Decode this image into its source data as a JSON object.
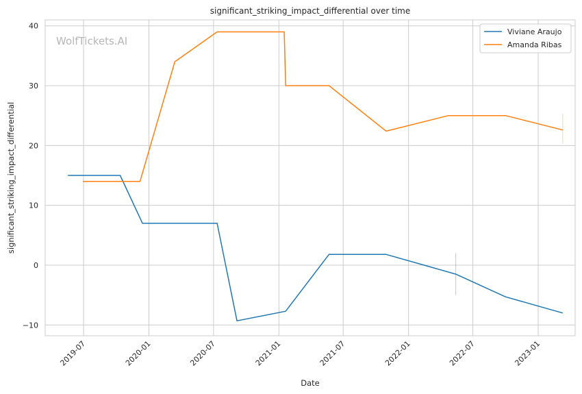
{
  "watermark": "WolfTickets.AI",
  "chart_data": {
    "type": "line",
    "title": "significant_striking_impact_differential over time",
    "xlabel": "Date",
    "ylabel": "significant_striking_impact_differential",
    "x_ticks": [
      "2019-07",
      "2020-01",
      "2020-07",
      "2021-01",
      "2021-07",
      "2022-01",
      "2022-07",
      "2023-01"
    ],
    "y_ticks": [
      -10,
      0,
      10,
      20,
      30,
      40
    ],
    "xlim": [
      "2019-03-15",
      "2023-04-15"
    ],
    "ylim": [
      -11.8,
      41
    ],
    "grid": true,
    "legend_position": "top-right",
    "series": [
      {
        "name": "Viviane Araujo",
        "color": "#1f77b4",
        "points": [
          {
            "x": "2019-05-18",
            "y": 15.0
          },
          {
            "x": "2019-10-12",
            "y": 15.0
          },
          {
            "x": "2019-12-14",
            "y": 7.0
          },
          {
            "x": "2020-07-11",
            "y": 7.0
          },
          {
            "x": "2020-09-05",
            "y": -9.3
          },
          {
            "x": "2021-01-20",
            "y": -7.7
          },
          {
            "x": "2021-05-22",
            "y": 1.8
          },
          {
            "x": "2021-10-30",
            "y": 1.8
          },
          {
            "x": "2022-05-14",
            "y": -1.5
          },
          {
            "x": "2022-10-01",
            "y": -5.3
          },
          {
            "x": "2023-03-11",
            "y": -8.0
          }
        ],
        "error_bar": {
          "x": "2022-05-14",
          "low": -5.0,
          "high": 2.0
        }
      },
      {
        "name": "Amanda Ribas",
        "color": "#ff7f0e",
        "points": [
          {
            "x": "2019-06-29",
            "y": 14.0
          },
          {
            "x": "2019-12-07",
            "y": 14.0
          },
          {
            "x": "2020-03-14",
            "y": 34.0
          },
          {
            "x": "2020-07-11",
            "y": 39.0
          },
          {
            "x": "2021-01-16",
            "y": 39.0
          },
          {
            "x": "2021-01-20",
            "y": 30.0
          },
          {
            "x": "2021-05-22",
            "y": 30.0
          },
          {
            "x": "2021-10-30",
            "y": 22.4
          },
          {
            "x": "2022-04-23",
            "y": 25.0
          },
          {
            "x": "2022-10-01",
            "y": 25.0
          },
          {
            "x": "2023-03-11",
            "y": 22.6
          }
        ],
        "error_bar": {
          "x": "2023-03-11",
          "low": 20.3,
          "high": 25.3
        }
      }
    ]
  }
}
